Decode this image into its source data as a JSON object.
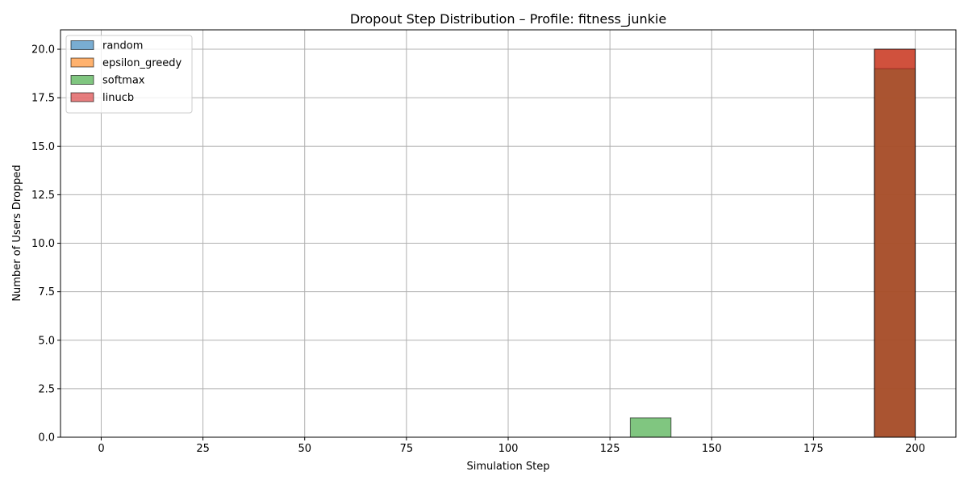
{
  "chart_data": {
    "type": "bar",
    "subtype": "histogram",
    "title": "Dropout Step Distribution – Profile: fitness_junkie",
    "xlabel": "Simulation Step",
    "ylabel": "Number of Users Dropped",
    "xlim": [
      -10,
      210
    ],
    "ylim": [
      0,
      21
    ],
    "xticks": [
      0,
      25,
      50,
      75,
      100,
      125,
      150,
      175,
      200
    ],
    "yticks": [
      0.0,
      2.5,
      5.0,
      7.5,
      10.0,
      12.5,
      15.0,
      17.5,
      20.0
    ],
    "xtick_labels": [
      "0",
      "25",
      "50",
      "75",
      "100",
      "125",
      "150",
      "175",
      "200"
    ],
    "ytick_labels": [
      "0.0",
      "2.5",
      "5.0",
      "7.5",
      "10.0",
      "12.5",
      "15.0",
      "17.5",
      "20.0"
    ],
    "bin_edges": [
      0,
      10,
      20,
      30,
      40,
      50,
      60,
      70,
      80,
      90,
      100,
      110,
      120,
      130,
      140,
      150,
      160,
      170,
      180,
      190,
      200
    ],
    "grid": true,
    "legend_position": "top-left",
    "series": [
      {
        "name": "random",
        "color": "#1f77b4",
        "alpha": 0.6,
        "values": [
          0,
          0,
          0,
          0,
          0,
          0,
          0,
          0,
          0,
          0,
          0,
          0,
          0,
          0,
          0,
          0,
          0,
          0,
          0,
          20
        ]
      },
      {
        "name": "epsilon_greedy",
        "color": "#ff7f0e",
        "alpha": 0.6,
        "values": [
          0,
          0,
          0,
          0,
          0,
          0,
          0,
          0,
          0,
          0,
          0,
          0,
          0,
          0,
          0,
          0,
          0,
          0,
          0,
          20
        ]
      },
      {
        "name": "softmax",
        "color": "#2ca02c",
        "alpha": 0.6,
        "values": [
          0,
          0,
          0,
          0,
          0,
          0,
          0,
          0,
          0,
          0,
          0,
          0,
          0,
          1,
          0,
          0,
          0,
          0,
          0,
          19
        ]
      },
      {
        "name": "linucb",
        "color": "#d62728",
        "alpha": 0.6,
        "values": [
          0,
          0,
          0,
          0,
          0,
          0,
          0,
          0,
          0,
          0,
          0,
          0,
          0,
          0,
          0,
          0,
          0,
          0,
          0,
          20
        ]
      }
    ]
  }
}
